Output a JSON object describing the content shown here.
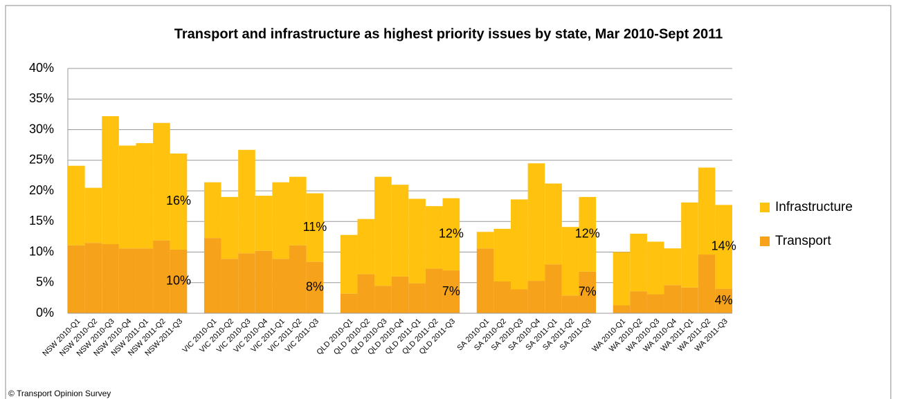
{
  "chart_data": {
    "type": "stacked_bar",
    "title": "Transport and infrastructure as highest priority issues by state, Mar 2010-Sept 2011",
    "source": "© Transport Opinion Survey",
    "categories": [
      "NSW 2010-Q1",
      "NSW 2010-Q2",
      "NSW 2010-Q3",
      "NSW 2010-Q4",
      "NSW 2011-Q1",
      "NSW 2011-Q2",
      "NSW-2011-Q3",
      null,
      "VIC 2010-Q1",
      "VIC 2010-Q2",
      "VIC 2010-Q3",
      "VIC 2010-Q4",
      "VIC 2011-Q1",
      "VIC 2011-Q2",
      "VIC 2011-Q3",
      null,
      "QLD 2010-Q1",
      "QLD 2010-Q2",
      "QLD 2010-Q3",
      "QLD 2010-Q4",
      "QLD 2011-Q1",
      "QLD 2011-Q2",
      "QLD 2011-Q3",
      null,
      "SA 2010-Q1",
      "SA 2010-Q2",
      "SA 2010-Q3",
      "SA 2010-Q4",
      "SA 2011-Q1",
      "SA 2011-Q2",
      "SA 2011-Q3",
      null,
      "WA 2010-Q1",
      "WA 2010-Q2",
      "WA 2010-Q3",
      "WA 2010-Q4",
      "WA 2011-Q1",
      "WA 2011-Q2",
      "WA 2011-Q3"
    ],
    "series": [
      {
        "name": "Transport",
        "color": "#f7a21b",
        "values": [
          11.1,
          11.5,
          11.3,
          10.6,
          10.6,
          11.9,
          10.4,
          null,
          12.3,
          8.9,
          9.8,
          10.2,
          8.9,
          11.1,
          8.4,
          null,
          3.2,
          6.4,
          4.5,
          6.0,
          4.9,
          7.3,
          7.0,
          null,
          10.6,
          5.2,
          3.9,
          5.3,
          8.0,
          2.9,
          6.8,
          null,
          1.3,
          3.6,
          3.1,
          4.6,
          4.2,
          9.6,
          4.0
        ],
        "value_labels": [
          null,
          null,
          null,
          null,
          null,
          null,
          "10%",
          null,
          null,
          null,
          null,
          null,
          null,
          null,
          "8%",
          null,
          null,
          null,
          null,
          null,
          null,
          null,
          "7%",
          null,
          null,
          null,
          null,
          null,
          null,
          null,
          "7%",
          null,
          null,
          null,
          null,
          null,
          null,
          null,
          "4%"
        ]
      },
      {
        "name": "Infrastructure",
        "color": "#ffc20e",
        "values": [
          13.0,
          9.0,
          20.9,
          16.8,
          17.2,
          19.2,
          15.7,
          null,
          9.1,
          10.1,
          16.9,
          9.0,
          12.5,
          11.2,
          11.2,
          null,
          9.6,
          9.0,
          17.8,
          15.0,
          13.8,
          10.2,
          11.8,
          null,
          2.7,
          8.6,
          14.7,
          19.2,
          13.2,
          11.2,
          12.2,
          null,
          8.7,
          9.4,
          8.6,
          6.0,
          13.9,
          14.2,
          13.7
        ],
        "value_labels": [
          null,
          null,
          null,
          null,
          null,
          null,
          "16%",
          null,
          null,
          null,
          null,
          null,
          null,
          null,
          "11%",
          null,
          null,
          null,
          null,
          null,
          null,
          null,
          "12%",
          null,
          null,
          null,
          null,
          null,
          null,
          null,
          "12%",
          null,
          null,
          null,
          null,
          null,
          null,
          null,
          "14%"
        ]
      }
    ],
    "ylim": [
      0,
      40
    ],
    "yticks": [
      {
        "value": 0,
        "label": "0%"
      },
      {
        "value": 5,
        "label": "5%"
      },
      {
        "value": 10,
        "label": "10%"
      },
      {
        "value": 15,
        "label": "15%"
      },
      {
        "value": 20,
        "label": "20%"
      },
      {
        "value": 25,
        "label": "25%"
      },
      {
        "value": 30,
        "label": "30%"
      },
      {
        "value": 35,
        "label": "35%"
      },
      {
        "value": 40,
        "label": "40%"
      }
    ],
    "grid": true,
    "legend": "right"
  }
}
